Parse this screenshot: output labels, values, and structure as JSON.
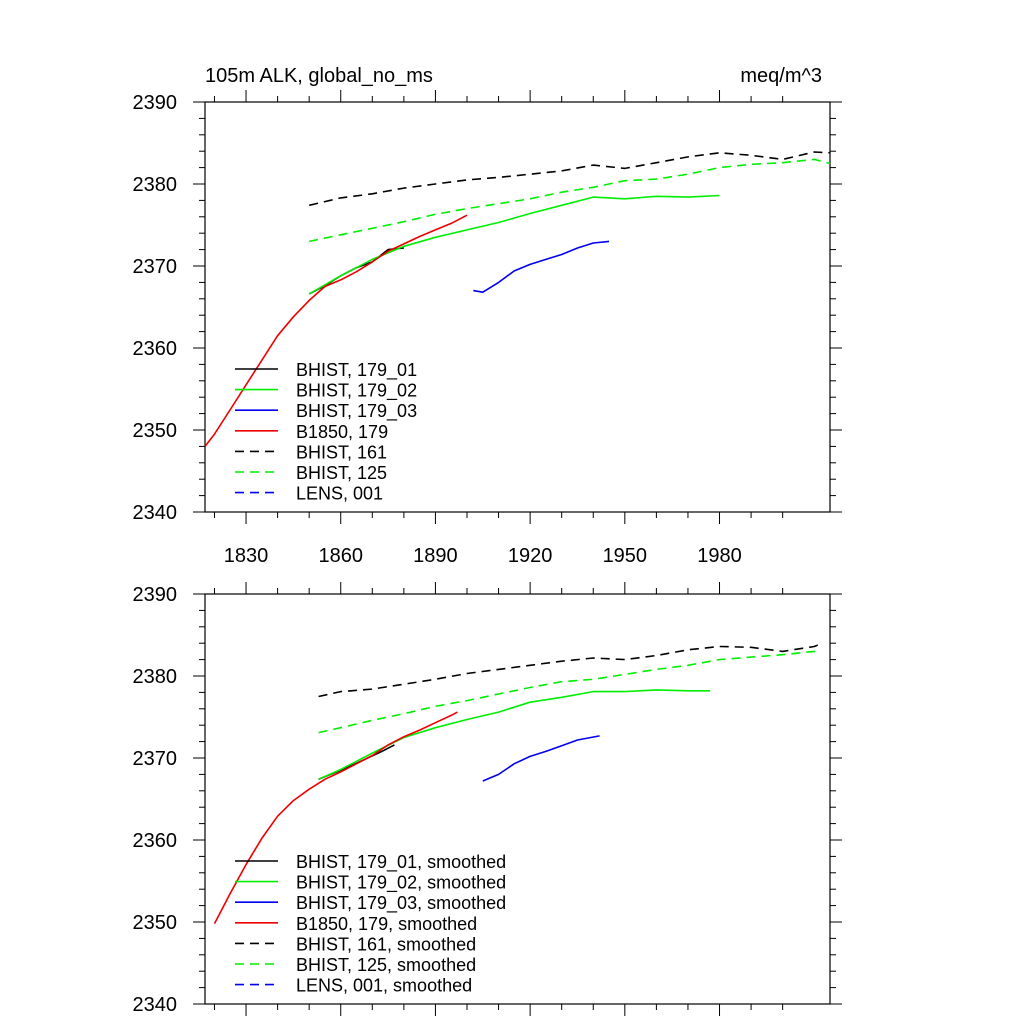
{
  "chart_data": [
    {
      "type": "line",
      "title": "105m ALK, global_no_ms",
      "units": "meq/m^3",
      "xlim": [
        1817,
        2015
      ],
      "ylim": [
        2340,
        2390
      ],
      "x_ticks": [
        1830,
        1860,
        1890,
        1920,
        1950,
        1980
      ],
      "y_ticks": [
        2340,
        2350,
        2360,
        2370,
        2380,
        2390
      ],
      "x_tick_labels": [
        "1830",
        "1860",
        "1890",
        "1920",
        "1950",
        "1980"
      ],
      "y_tick_labels": [
        "2340",
        "2350",
        "2360",
        "2370",
        "2380",
        "2390"
      ],
      "legend_position": "bottom-left",
      "series": [
        {
          "name": "BHIST, 179_01",
          "color": "#000000",
          "dashed": false,
          "x": [
            1850,
            1855,
            1860,
            1865,
            1870,
            1875,
            1880
          ],
          "y": [
            2366.6,
            2367.6,
            2368.8,
            2369.8,
            2370.5,
            2372.0,
            2372.2
          ]
        },
        {
          "name": "BHIST, 179_02",
          "color": "#00ee00",
          "dashed": false,
          "x": [
            1850,
            1860,
            1870,
            1880,
            1890,
            1900,
            1910,
            1920,
            1930,
            1940,
            1950,
            1960,
            1970,
            1980
          ],
          "y": [
            2366.6,
            2368.8,
            2370.8,
            2372.4,
            2373.5,
            2374.4,
            2375.3,
            2376.4,
            2377.4,
            2378.4,
            2378.2,
            2378.5,
            2378.4,
            2378.6
          ]
        },
        {
          "name": "BHIST, 179_03",
          "color": "#0000ee",
          "dashed": false,
          "x": [
            1902,
            1905,
            1910,
            1915,
            1920,
            1925,
            1930,
            1935,
            1940,
            1945
          ],
          "y": [
            2367.0,
            2366.8,
            2368.0,
            2369.4,
            2370.2,
            2370.8,
            2371.4,
            2372.2,
            2372.8,
            2373.0
          ]
        },
        {
          "name": "B1850, 179",
          "color": "#ee0000",
          "dashed": false,
          "x": [
            1817,
            1820,
            1825,
            1830,
            1835,
            1840,
            1845,
            1850,
            1855,
            1860,
            1865,
            1870,
            1875,
            1880,
            1885,
            1890,
            1895,
            1900
          ],
          "y": [
            2348.0,
            2349.5,
            2352.5,
            2355.5,
            2358.5,
            2361.5,
            2363.8,
            2365.8,
            2367.5,
            2368.3,
            2369.3,
            2370.5,
            2371.8,
            2372.7,
            2373.6,
            2374.4,
            2375.2,
            2376.2
          ]
        },
        {
          "name": "BHIST, 161",
          "color": "#000000",
          "dashed": true,
          "x": [
            1850,
            1860,
            1870,
            1880,
            1890,
            1900,
            1910,
            1920,
            1930,
            1940,
            1950,
            1960,
            1970,
            1980,
            1990,
            2000,
            2010,
            2015
          ],
          "y": [
            2377.4,
            2378.3,
            2378.8,
            2379.5,
            2380.0,
            2380.5,
            2380.8,
            2381.2,
            2381.6,
            2382.3,
            2381.9,
            2382.6,
            2383.3,
            2383.8,
            2383.5,
            2383.0,
            2383.9,
            2383.8
          ]
        },
        {
          "name": "BHIST, 125",
          "color": "#00ee00",
          "dashed": true,
          "x": [
            1850,
            1860,
            1870,
            1880,
            1890,
            1900,
            1910,
            1920,
            1930,
            1940,
            1950,
            1960,
            1970,
            1980,
            1990,
            2000,
            2010,
            2015
          ],
          "y": [
            2373.0,
            2373.8,
            2374.6,
            2375.4,
            2376.3,
            2377.0,
            2377.6,
            2378.2,
            2379.0,
            2379.6,
            2380.4,
            2380.6,
            2381.2,
            2382.0,
            2382.4,
            2382.6,
            2383.0,
            2382.5
          ]
        },
        {
          "name": "LENS, 001",
          "color": "#0000ee",
          "dashed": true,
          "x": [],
          "y": []
        }
      ]
    },
    {
      "type": "line",
      "title": "",
      "units": "",
      "xlim": [
        1817,
        2015
      ],
      "ylim": [
        2340,
        2390
      ],
      "x_ticks": [
        1830,
        1860,
        1890,
        1920,
        1950,
        1980
      ],
      "y_ticks": [
        2340,
        2350,
        2360,
        2370,
        2380,
        2390
      ],
      "y_tick_labels": [
        "2340",
        "2350",
        "2360",
        "2370",
        "2380",
        "2390"
      ],
      "legend_position": "bottom-left",
      "series": [
        {
          "name": "BHIST, 179_01, smoothed",
          "color": "#000000",
          "dashed": false,
          "x": [
            1853,
            1858,
            1863,
            1868,
            1873,
            1877
          ],
          "y": [
            2367.4,
            2368.2,
            2369.0,
            2369.9,
            2370.8,
            2371.6
          ]
        },
        {
          "name": "BHIST, 179_02, smoothed",
          "color": "#00ee00",
          "dashed": false,
          "x": [
            1853,
            1860,
            1870,
            1880,
            1890,
            1900,
            1910,
            1920,
            1930,
            1940,
            1950,
            1960,
            1970,
            1977
          ],
          "y": [
            2367.4,
            2368.6,
            2370.6,
            2372.5,
            2373.7,
            2374.7,
            2375.6,
            2376.8,
            2377.4,
            2378.1,
            2378.1,
            2378.3,
            2378.2,
            2378.2
          ]
        },
        {
          "name": "BHIST, 179_03, smoothed",
          "color": "#0000ee",
          "dashed": false,
          "x": [
            1905,
            1910,
            1915,
            1920,
            1925,
            1930,
            1935,
            1942
          ],
          "y": [
            2367.2,
            2368.0,
            2369.3,
            2370.2,
            2370.8,
            2371.5,
            2372.2,
            2372.7
          ]
        },
        {
          "name": "B1850, 179, smoothed",
          "color": "#ee0000",
          "dashed": false,
          "x": [
            1820,
            1825,
            1830,
            1835,
            1840,
            1845,
            1850,
            1855,
            1860,
            1865,
            1870,
            1875,
            1880,
            1885,
            1890,
            1895,
            1897
          ],
          "y": [
            2349.8,
            2353.5,
            2357.0,
            2360.2,
            2362.9,
            2364.8,
            2366.2,
            2367.4,
            2368.3,
            2369.3,
            2370.3,
            2371.6,
            2372.6,
            2373.4,
            2374.3,
            2375.2,
            2375.6
          ]
        },
        {
          "name": "BHIST, 161, smoothed",
          "color": "#000000",
          "dashed": true,
          "x": [
            1853,
            1860,
            1870,
            1880,
            1890,
            1900,
            1910,
            1920,
            1930,
            1940,
            1950,
            1960,
            1970,
            1980,
            1990,
            2000,
            2010,
            2012
          ],
          "y": [
            2377.5,
            2378.1,
            2378.4,
            2379.0,
            2379.6,
            2380.3,
            2380.8,
            2381.3,
            2381.8,
            2382.2,
            2382.0,
            2382.5,
            2383.2,
            2383.6,
            2383.5,
            2383.0,
            2383.6,
            2383.9
          ]
        },
        {
          "name": "BHIST, 125, smoothed",
          "color": "#00ee00",
          "dashed": true,
          "x": [
            1853,
            1860,
            1870,
            1880,
            1890,
            1900,
            1910,
            1920,
            1930,
            1940,
            1950,
            1960,
            1970,
            1980,
            1990,
            2000,
            2010,
            2012
          ],
          "y": [
            2373.1,
            2373.7,
            2374.6,
            2375.4,
            2376.3,
            2377.0,
            2377.8,
            2378.6,
            2379.3,
            2379.6,
            2380.2,
            2380.8,
            2381.3,
            2382.0,
            2382.3,
            2382.6,
            2383.0,
            2382.8
          ]
        },
        {
          "name": "LENS, 001, smoothed",
          "color": "#0000ee",
          "dashed": true,
          "x": [],
          "y": []
        }
      ]
    }
  ]
}
